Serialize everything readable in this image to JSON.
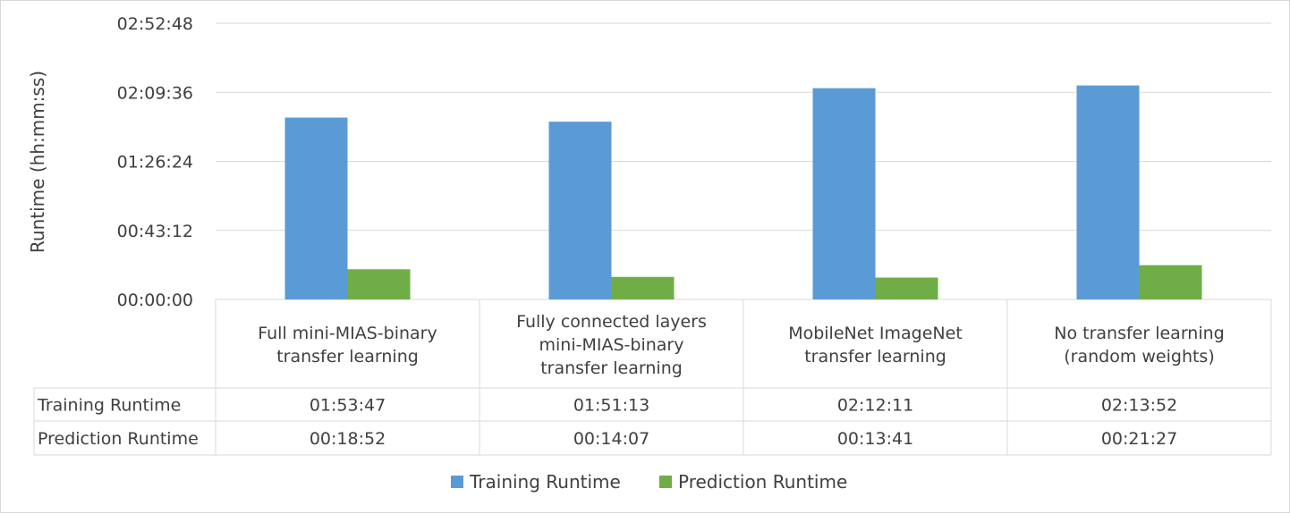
{
  "chart_data": {
    "type": "bar",
    "ylabel": "Runtime (hh:mm:ss)",
    "y_ticks": [
      "00:00:00",
      "00:43:12",
      "01:26:24",
      "02:09:36",
      "02:52:48"
    ],
    "ylim_seconds": [
      0,
      10368
    ],
    "categories": [
      [
        "Full mini-MIAS-binary",
        "transfer learning"
      ],
      [
        "Fully connected layers",
        "mini-MIAS-binary",
        "transfer learning"
      ],
      [
        "MobileNet ImageNet",
        "transfer learning"
      ],
      [
        "No transfer learning",
        "(random weights)"
      ]
    ],
    "series": [
      {
        "name": "Training Runtime",
        "color": "#5b9bd5",
        "labels": [
          "01:53:47",
          "01:51:13",
          "02:12:11",
          "02:13:52"
        ],
        "values_seconds": [
          6827,
          6673,
          7931,
          8032
        ]
      },
      {
        "name": "Prediction Runtime",
        "color": "#70ad47",
        "labels": [
          "00:18:52",
          "00:14:07",
          "00:13:41",
          "00:21:27"
        ],
        "values_seconds": [
          1132,
          847,
          821,
          1287
        ]
      }
    ],
    "grid": true,
    "legend": "bottom",
    "data_table": true
  }
}
